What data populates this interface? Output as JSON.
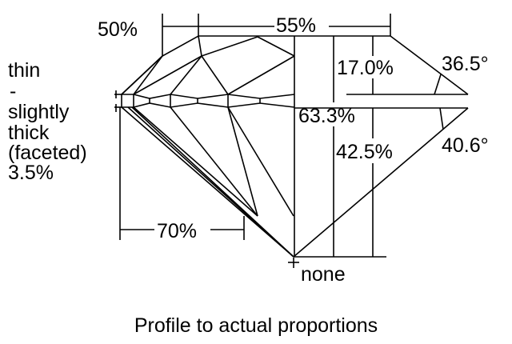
{
  "diagram": {
    "caption": "Profile to actual proportions",
    "labels": {
      "lower_half_length": "50%",
      "table": "55%",
      "girdle_thin": "thin",
      "girdle_dash": "-",
      "girdle_slightly": "slightly",
      "girdle_thick": "thick",
      "girdle_faceted": "(faceted)",
      "girdle_pct": "3.5%",
      "crown_height": "17.0%",
      "crown_angle": "36.5°",
      "total_depth": "63.3%",
      "pavilion_depth": "42.5%",
      "pavilion_angle": "40.6°",
      "star_length": "70%",
      "culet": "none"
    },
    "line_color": "#000000",
    "background": "#ffffff"
  }
}
